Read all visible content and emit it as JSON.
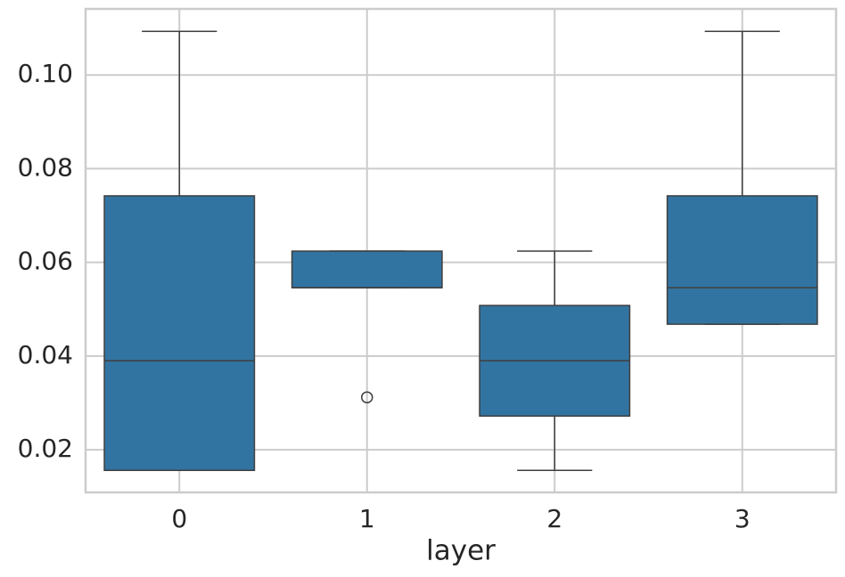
{
  "chart_data": {
    "type": "box",
    "xlabel": "layer",
    "categories": [
      "0",
      "1",
      "2",
      "3"
    ],
    "boxes": [
      {
        "whislo": 0.0156,
        "q1": 0.0156,
        "med": 0.039,
        "q3": 0.0742,
        "whishi": 0.1093,
        "fliers": []
      },
      {
        "whislo": 0.0546,
        "q1": 0.0546,
        "med": 0.0546,
        "q3": 0.0624,
        "whishi": 0.0624,
        "fliers": [
          0.0312
        ]
      },
      {
        "whislo": 0.0156,
        "q1": 0.0272,
        "med": 0.039,
        "q3": 0.0508,
        "whishi": 0.0624,
        "fliers": []
      },
      {
        "whislo": 0.0468,
        "q1": 0.0468,
        "med": 0.0546,
        "q3": 0.0742,
        "whishi": 0.1093,
        "fliers": []
      }
    ],
    "color": "#3274a1",
    "ylim": [
      0.0109,
      0.1141
    ],
    "yticks": [
      0.02,
      0.04,
      0.06,
      0.08,
      {
        "value": 0.1,
        "label": "0.10"
      }
    ],
    "grid": true
  }
}
